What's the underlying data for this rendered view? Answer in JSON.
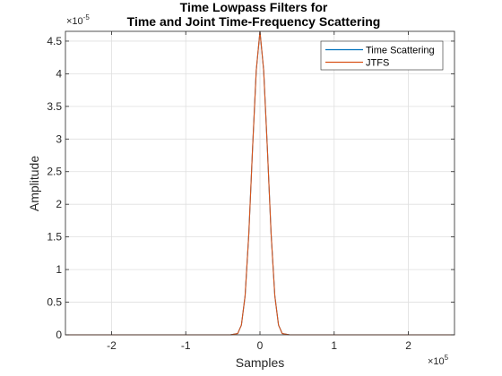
{
  "chart_data": {
    "type": "line",
    "title_lines": [
      "Time Lowpass Filters for",
      "Time and Joint Time-Frequency Scattering"
    ],
    "xlabel": "Samples",
    "ylabel": "Amplitude",
    "x_exponent_base": "×10",
    "x_exponent_power": "5",
    "y_exponent_base": "×10",
    "y_exponent_power": "-5",
    "xlim": [
      -2.62144,
      2.62144
    ],
    "ylim": [
      0,
      4.65
    ],
    "x_ticks": [
      -2,
      -1,
      0,
      1,
      2
    ],
    "x_tick_labels": [
      "-2",
      "-1",
      "0",
      "1",
      "2"
    ],
    "y_ticks": [
      0,
      0.5,
      1,
      1.5,
      2,
      2.5,
      3,
      3.5,
      4,
      4.5
    ],
    "y_tick_labels": [
      "0",
      "0.5",
      "1",
      "1.5",
      "2",
      "2.5",
      "3",
      "3.5",
      "4",
      "4.5"
    ],
    "grid": true,
    "legend_placement": "top-right",
    "series": [
      {
        "name": "Time Scattering",
        "color": "#0072BD",
        "x": [
          -2.62,
          -0.4,
          -0.3,
          -0.25,
          -0.2,
          -0.15,
          -0.1,
          -0.05,
          0,
          0.05,
          0.1,
          0.15,
          0.2,
          0.25,
          0.3,
          0.4,
          2.62
        ],
        "y": [
          0,
          0,
          0.02,
          0.15,
          0.6,
          1.55,
          2.85,
          4.05,
          4.65,
          4.05,
          2.85,
          1.55,
          0.6,
          0.15,
          0.02,
          0,
          0
        ]
      },
      {
        "name": "JTFS",
        "color": "#D95319",
        "x": [
          -2.62,
          -0.4,
          -0.3,
          -0.25,
          -0.2,
          -0.15,
          -0.1,
          -0.05,
          0,
          0.05,
          0.1,
          0.15,
          0.2,
          0.25,
          0.3,
          0.4,
          2.62
        ],
        "y": [
          0,
          0,
          0.02,
          0.15,
          0.6,
          1.55,
          2.85,
          4.05,
          4.65,
          4.05,
          2.85,
          1.55,
          0.6,
          0.15,
          0.02,
          0,
          0
        ]
      }
    ]
  }
}
